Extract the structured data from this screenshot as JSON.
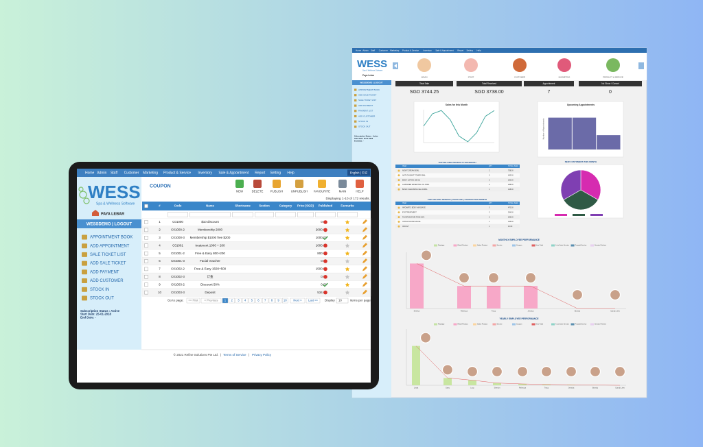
{
  "tablet": {
    "nav": [
      "Home",
      "Admin",
      "Staff",
      "Customer",
      "Marketing",
      "Product & Service",
      "Inventory",
      "Sale & Appointment",
      "Report",
      "Setting",
      "Help"
    ],
    "language": "English | 中文",
    "logo": {
      "title": "WESS",
      "subtitle": "Spa & Wellness Software"
    },
    "location": "PAYA LEBAR",
    "user_bar": "WESSDEMO  |  LOGOUT",
    "menu": [
      "APPOINTMENT BOOK",
      "ADD APPOINTMENT",
      "SALE TICKET LIST",
      "ADD SALE TICKET",
      "ADD PAYMENT",
      "ADD CUSTOMER",
      "STOCK IN",
      "STOCK OUT"
    ],
    "subscription": [
      "Subscription Status : Active",
      "Start Date: 25-01-2018",
      "End Date: -"
    ],
    "page_title": "COUPON",
    "toolbar": [
      "NEW",
      "DELETE",
      "PUBLISH",
      "UNPUBLISH",
      "FAVOURITE",
      "MAIN",
      "HELP"
    ],
    "results": "Displaying 1-10 of 172 results.",
    "table": {
      "columns": [
        "#",
        "Code",
        "Name",
        "Shortname",
        "Section",
        "Category",
        "Price (SGD)",
        "Published",
        "Favourite"
      ],
      "rows": [
        [
          "1",
          "C01000",
          "$10 discount",
          "0.00"
        ],
        [
          "2",
          "C01000-2",
          "Membership 2000",
          "2000.00"
        ],
        [
          "3",
          "C01000-3",
          "Membership $1000 free $200",
          "1000.00"
        ],
        [
          "4",
          "C01001",
          "treatment 1000 + 200",
          "1000.00"
        ],
        [
          "5",
          "C01001-2",
          "Free & Easy 800+200",
          "800.00"
        ],
        [
          "6",
          "C01001-3",
          "Facial Voucher",
          "0.00"
        ],
        [
          "7",
          "C01002-2",
          "Free & Easy 1500+500",
          "1500.00"
        ],
        [
          "8",
          "C01002-3",
          "订金",
          "0.00"
        ],
        [
          "9",
          "C01003-2",
          "Discount 50%",
          "0.00"
        ],
        [
          "10",
          "C01003-3",
          "Deposit",
          "534.00"
        ]
      ]
    },
    "pagination": {
      "label": "Go to page:",
      "first": "<< First",
      "previous": "< Previous",
      "pages": [
        "1",
        "2",
        "3",
        "4",
        "5",
        "6",
        "7",
        "8",
        "9",
        "10"
      ],
      "next": "Next >",
      "last": "Last >>",
      "display": "Display",
      "per_page": "10",
      "per_page_label": "items per page"
    },
    "footer": {
      "copyright": "© 2021 Refine Solutions Pte Ltd.",
      "separator": "|",
      "links": [
        "Terms of Service",
        "Privacy Policy"
      ]
    }
  },
  "desktop": {
    "nav": [
      "Home",
      "Admin",
      "Staff",
      "Customer",
      "Marketing",
      "Product & Service",
      "Inventory",
      "Sale & Appointment",
      "Report",
      "Setting",
      "Help"
    ],
    "modules": [
      "ADMIN",
      "STAFF",
      "CUSTOMER",
      "MARKETING",
      "PRODUCT & SERVICE"
    ],
    "location": "Paya Lebar",
    "user_bar": "WESSDEMO | LOGOUT",
    "menu": [
      "APPOINTMENT BOOK",
      "ADD SALE TICKET",
      "SALE TICKET LIST",
      "ADD PAYMENT",
      "PAYMENT LIST",
      "ADD CUSTOMER",
      "STOCK IN",
      "STOCK OUT"
    ],
    "subscription": [
      "Subscription Status : Active",
      "Start Date: 25-01-2018",
      "End Date: -"
    ],
    "stats": [
      {
        "label": "Total Sale",
        "value": "SGD 3744.25"
      },
      {
        "label": "Total Received",
        "value": "SGD 3738.00"
      },
      {
        "label": "Appointment",
        "value": "7"
      },
      {
        "label": "No Show / Cancel",
        "value": "0"
      }
    ],
    "top_products": {
      "title": "TOP SELLING PRODUCT THIS MONTH",
      "columns": [
        "ITEM",
        "QTY",
        "TOTAL (SGD)"
      ],
      "rows": [
        [
          "NIGHT CREAM 30ML",
          "2",
          "758.00"
        ],
        [
          "ANTI OXIDANT TONER 30ML",
          "3",
          "492.00"
        ],
        [
          "BODY LOTION 180 ML",
          "2",
          "230.00"
        ],
        [
          "LAVENDER ESSENTIAL OIL 30ML",
          "2",
          "298.00"
        ],
        [
          "BASIC CLEANSING GEL 100ML",
          "1",
          "148.00"
        ]
      ]
    },
    "top_services": {
      "title": "TOP SELLING SERVICE | PACKAGE | COUPON THIS MONTH",
      "columns": [
        "ITEM",
        "QTY",
        "TOTAL (SGD)"
      ],
      "rows": [
        [
          "AROMATIC BODY MASSAGE",
          "3",
          "470.00"
        ],
        [
          "EYE TREATMENT",
          "2",
          "294.00"
        ],
        [
          "FLORA ENZYME FACE 30%",
          "2",
          "256.00"
        ],
        [
          "ULTRA SOUND FACIAL",
          "1",
          "305.00"
        ],
        [
          "VAUCLY",
          "1",
          "10.00"
        ]
      ]
    }
  },
  "chart_data": [
    {
      "type": "line",
      "title": "Sales for this Month",
      "values": [
        2,
        3.5,
        3.9,
        2.8,
        0.8,
        0.1,
        1.2,
        3.2,
        3.9
      ],
      "color": "#3aa39a",
      "ylim": [
        0,
        4
      ]
    },
    {
      "type": "bar",
      "title": "Upcoming Appointments",
      "y_label": "Number of Appointments",
      "values": [
        2,
        2,
        0.9
      ],
      "color": "#6b6ba8",
      "ylim": [
        0,
        2.5
      ]
    },
    {
      "type": "pie",
      "title": "NEW CUSTOMERS THIS MONTH",
      "values": [
        1,
        1,
        1
      ],
      "colors": [
        "#d62bb0",
        "#2f5a45",
        "#7f3fb2"
      ]
    },
    {
      "type": "bar",
      "title": "MONTHLY EMPLOYEE PERFORMANCE",
      "categories": [
        "Sherlyn",
        "Rebecca",
        "Tracy",
        "Jessica",
        "Brandy",
        "Candy Liew"
      ],
      "values": [
        2000,
        1000,
        1000,
        1000,
        0,
        0
      ],
      "color": "#f7a8c8",
      "ylim": [
        0,
        2500
      ],
      "legend": [
        {
          "name": "Package",
          "color": "#c5e3a5"
        },
        {
          "name": "Retail Product",
          "color": "#f7a8c8"
        },
        {
          "name": "Salon Product",
          "color": "#fbd5a0"
        },
        {
          "name": "Service",
          "color": "#f4a6a6"
        },
        {
          "name": "Coupon",
          "color": "#9fc5e8"
        },
        {
          "name": "New Total",
          "color": "#e06060"
        },
        {
          "name": "A La Carte Service",
          "color": "#8fd3c8"
        },
        {
          "name": "Prepaid Service",
          "color": "#5a8fb0"
        },
        {
          "name": "Service Perform",
          "color": "#e8d0f0"
        }
      ]
    },
    {
      "type": "bar",
      "title": "YEARLY EMPLOYEE PERFORMANCE",
      "categories": [
        "Linda",
        "Sany",
        "Lucy",
        "Sherlyn",
        "Rebecca",
        "Tracy",
        "Jessica",
        "Brandy",
        "Candy Liew"
      ],
      "values": [
        7000,
        1300,
        900,
        400,
        250,
        150,
        100,
        50,
        0
      ],
      "color": "#c8e6a0",
      "ylim": [
        0,
        10000
      ],
      "legend": [
        {
          "name": "Package",
          "color": "#c5e3a5"
        },
        {
          "name": "Retail Product",
          "color": "#f7a8c8"
        },
        {
          "name": "Salon Product",
          "color": "#fbd5a0"
        },
        {
          "name": "Service",
          "color": "#f4a6a6"
        },
        {
          "name": "Coupon",
          "color": "#9fc5e8"
        },
        {
          "name": "New Total",
          "color": "#e06060"
        },
        {
          "name": "A La Carte Service",
          "color": "#8fd3c8"
        },
        {
          "name": "Prepaid Service",
          "color": "#5a8fb0"
        },
        {
          "name": "Service Perform",
          "color": "#e8d0f0"
        }
      ]
    }
  ]
}
